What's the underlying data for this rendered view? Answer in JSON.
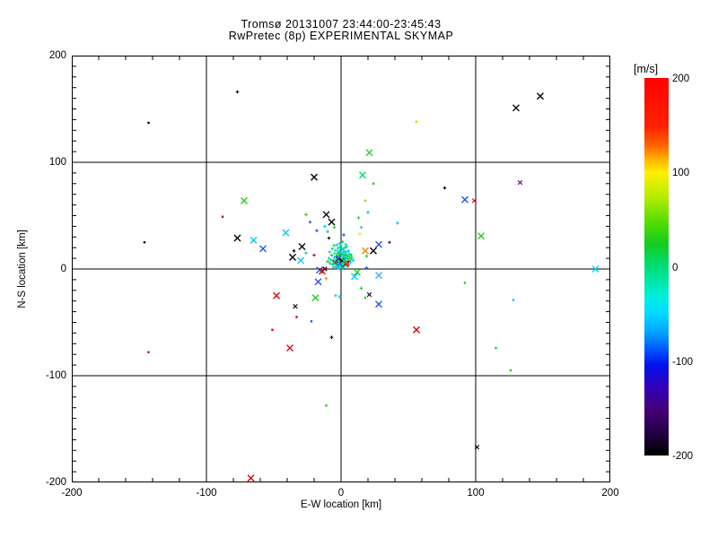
{
  "title": {
    "line1": "Tromsø 20131007 23:44:00-23:45:43",
    "line2": "RwPretec (8p) EXPERIMENTAL SKYMAP"
  },
  "plot": {
    "xlabel": "E-W location [km]",
    "ylabel": "N-S location [km]",
    "x_major_ticks": [
      -200,
      -100,
      0,
      100,
      200
    ],
    "x_tick_labels": [
      "-200",
      "-100",
      "0",
      "100",
      "200"
    ],
    "y_major_ticks": [
      200,
      100,
      0,
      -100,
      -200
    ],
    "y_tick_labels": [
      "200",
      "100",
      "0",
      "-100",
      "-200"
    ],
    "x_minor_step": 20,
    "y_minor_step": 10,
    "grid_values": [
      -100,
      0,
      100
    ]
  },
  "colorbar": {
    "label": "[m/s]",
    "tick_values": [
      200,
      100,
      0,
      -100,
      -200
    ],
    "tick_labels": [
      "200",
      "100",
      "0",
      "-100",
      "-200"
    ],
    "min": -200,
    "max": 200,
    "gradient_stops_top_to_bottom": [
      [
        "0%",
        "#ff0000"
      ],
      [
        "13%",
        "#ff2200"
      ],
      [
        "18%",
        "#ff6600"
      ],
      [
        "22%",
        "#ffbb00"
      ],
      [
        "25%",
        "#ffee00"
      ],
      [
        "31%",
        "#bbee00"
      ],
      [
        "38%",
        "#55dd00"
      ],
      [
        "44%",
        "#11cc22"
      ],
      [
        "50%",
        "#00dd77"
      ],
      [
        "54%",
        "#00e6aa"
      ],
      [
        "58%",
        "#00eedd"
      ],
      [
        "62%",
        "#00ddff"
      ],
      [
        "67%",
        "#00aaff"
      ],
      [
        "72%",
        "#0055ff"
      ],
      [
        "76%",
        "#0011ee"
      ],
      [
        "82%",
        "#3300bb"
      ],
      [
        "88%",
        "#440077"
      ],
      [
        "94%",
        "#220044"
      ],
      [
        "100%",
        "#000000"
      ]
    ]
  },
  "chart_data": {
    "type": "scatter",
    "title": "Tromsø 20131007 23:44:00-23:45:43",
    "subtitle": "RwPretec (8p) EXPERIMENTAL SKYMAP",
    "xlabel": "E-W location [km]",
    "ylabel": "N-S location [km]",
    "xlim": [
      -200,
      200
    ],
    "ylim": [
      -200,
      200
    ],
    "grid": true,
    "color_scale": {
      "label": "[m/s]",
      "min": -200,
      "max": 200
    },
    "marker_legend": {
      "X": "large cross",
      "x": "small cross",
      "+": "small plus",
      ".": "dot"
    },
    "points": [
      [
        -143,
        137,
        "#000000",
        "."
      ],
      [
        -77,
        166,
        "#000000",
        "+"
      ],
      [
        -146,
        25,
        "#000000",
        "."
      ],
      [
        -88,
        49,
        "#cc0000",
        "."
      ],
      [
        -72,
        64,
        "#22cc22",
        "X"
      ],
      [
        -20,
        86,
        "#000000",
        "X"
      ],
      [
        -77,
        29,
        "#000000",
        "X"
      ],
      [
        -65,
        27,
        "#00ccee",
        "X"
      ],
      [
        -58,
        19,
        "#2255ee",
        "X"
      ],
      [
        -41,
        34,
        "#00ccee",
        "X"
      ],
      [
        -11,
        51,
        "#000000",
        "X"
      ],
      [
        -7,
        44,
        "#000000",
        "X"
      ],
      [
        -23,
        44,
        "#2255ee",
        "+"
      ],
      [
        -26,
        51,
        "#22cc22",
        "+"
      ],
      [
        -18,
        36,
        "#2255ee",
        "+"
      ],
      [
        -35,
        17,
        "#000000",
        "+"
      ],
      [
        -36,
        11,
        "#000000",
        "X"
      ],
      [
        -30,
        8,
        "#00ccee",
        "X"
      ],
      [
        -29,
        21,
        "#000000",
        "X"
      ],
      [
        148,
        162,
        "#000000",
        "X"
      ],
      [
        130,
        151,
        "#000000",
        "X"
      ],
      [
        56,
        138,
        "#ddcc00",
        "."
      ],
      [
        21,
        109,
        "#33cc33",
        "X"
      ],
      [
        16,
        88,
        "#00dd66",
        "X"
      ],
      [
        24,
        80,
        "#22cc22",
        "."
      ],
      [
        77,
        76,
        "#000000",
        "+"
      ],
      [
        133,
        81,
        "#660077",
        "x"
      ],
      [
        92,
        65,
        "#2255ee",
        "X"
      ],
      [
        99,
        64,
        "#dd0000",
        "x"
      ],
      [
        18,
        64,
        "#99dd00",
        "."
      ],
      [
        20,
        53,
        "#00ccee",
        "+"
      ],
      [
        13,
        48,
        "#22cc22",
        "+"
      ],
      [
        42,
        43,
        "#00ccee",
        "+"
      ],
      [
        104,
        31,
        "#22cc22",
        "X"
      ],
      [
        14,
        33,
        "#ddee00",
        "+"
      ],
      [
        28,
        23,
        "#2255ee",
        "X"
      ],
      [
        36,
        25,
        "#550066",
        "+"
      ],
      [
        24,
        17,
        "#000000",
        "X"
      ],
      [
        18,
        17,
        "#ee8800",
        "X"
      ],
      [
        19,
        12,
        "#22cc22",
        "+"
      ],
      [
        189,
        0,
        "#00ddee",
        "X"
      ],
      [
        2,
        32,
        "#2255ee",
        "+"
      ],
      [
        -9,
        29,
        "#000000",
        "+"
      ],
      [
        0,
        25,
        "#2255ee",
        "+"
      ],
      [
        -12,
        40,
        "#00ccee",
        "+"
      ],
      [
        -5,
        39,
        "#22cc22",
        "+"
      ],
      [
        -10,
        35,
        "#00dd66",
        "+"
      ],
      [
        15,
        39,
        "#00ccee",
        "+"
      ],
      [
        -20,
        13,
        "#dd0000",
        "+"
      ],
      [
        -26,
        15,
        "#00ddaa",
        "+"
      ],
      [
        -9,
        6,
        "#dddd00",
        "+"
      ],
      [
        -12,
        0,
        "#000000",
        "x"
      ],
      [
        -16,
        -1,
        "#2255ee",
        "X"
      ],
      [
        19,
        1,
        "#2255ee",
        "+"
      ],
      [
        12,
        -3,
        "#22cc22",
        "X"
      ],
      [
        10,
        -7,
        "#00ccee",
        "X"
      ],
      [
        28,
        -6,
        "#44aaff",
        "X"
      ],
      [
        -4,
        -25,
        "#00ccee",
        "+"
      ],
      [
        -1,
        -26,
        "#00ccee",
        "+"
      ],
      [
        15,
        -18,
        "#22cc22",
        "+"
      ],
      [
        18,
        -27,
        "#22cc22",
        "+"
      ],
      [
        -143,
        -78,
        "#dd0000",
        "."
      ],
      [
        -48,
        -25,
        "#dd0000",
        "X"
      ],
      [
        -34,
        -35,
        "#000000",
        "x"
      ],
      [
        -19,
        -27,
        "#22cc22",
        "X"
      ],
      [
        -17,
        -12,
        "#2255ee",
        "X"
      ],
      [
        -14,
        -2,
        "#dd0000",
        "X"
      ],
      [
        -33,
        -45,
        "#dd0000",
        "."
      ],
      [
        -22,
        -49,
        "#2255ee",
        "."
      ],
      [
        -51,
        -57,
        "#dd0000",
        "."
      ],
      [
        -7,
        -64,
        "#000000",
        "+"
      ],
      [
        -38,
        -74,
        "#dd0000",
        "X"
      ],
      [
        -11,
        -128,
        "#22cc22",
        "."
      ],
      [
        -67,
        -196,
        "#dd0000",
        "X"
      ],
      [
        21,
        -24,
        "#000000",
        "x"
      ],
      [
        28,
        -33,
        "#2255ee",
        "X"
      ],
      [
        92,
        -13,
        "#22cc22",
        "."
      ],
      [
        56,
        -57,
        "#dd0000",
        "X"
      ],
      [
        128,
        -29,
        "#00ccee",
        "."
      ],
      [
        115,
        -74,
        "#22cc22",
        "."
      ],
      [
        126,
        -95,
        "#22cc22",
        "."
      ],
      [
        101,
        -167,
        "#000000",
        "x"
      ],
      [
        -11,
        -9,
        "#ee8800",
        "+"
      ],
      [
        -0.5,
        9.5,
        "#00dd99",
        "+"
      ],
      [
        1.2,
        11,
        "#00c8ee",
        "+"
      ],
      [
        -2,
        8,
        "#00e060",
        "+"
      ],
      [
        0.8,
        7,
        "#00dd99",
        "+"
      ],
      [
        -1.5,
        12,
        "#00c8ee",
        "+"
      ],
      [
        2.5,
        9,
        "#00dd99",
        "+"
      ],
      [
        -3,
        10.5,
        "#00e060",
        "+"
      ],
      [
        1.8,
        13.5,
        "#00dd99",
        "+"
      ],
      [
        -0.2,
        5.5,
        "#00c8ee",
        "+"
      ],
      [
        3.2,
        7.5,
        "#00e060",
        "+"
      ],
      [
        -4.2,
        6.5,
        "#00dd99",
        "+"
      ],
      [
        0.2,
        15,
        "#22cc22",
        "+"
      ],
      [
        -1,
        17,
        "#00dd99",
        "+"
      ],
      [
        2,
        16.5,
        "#00c8ee",
        "+"
      ],
      [
        -2.8,
        14,
        "#00dd99",
        "+"
      ],
      [
        4,
        12,
        "#00e060",
        "+"
      ],
      [
        -5,
        11,
        "#00c8ee",
        "+"
      ],
      [
        1,
        3.5,
        "#00dd99",
        "+"
      ],
      [
        -1.8,
        2.5,
        "#00e060",
        "+"
      ],
      [
        3,
        4,
        "#00c8ee",
        "+"
      ],
      [
        -3.5,
        4.5,
        "#00dd99",
        "+"
      ],
      [
        5,
        9.5,
        "#22cc22",
        "+"
      ],
      [
        -6,
        8,
        "#00e060",
        "+"
      ],
      [
        0.5,
        19,
        "#00c8ee",
        "+"
      ],
      [
        -2.2,
        19.5,
        "#00dd99",
        "+"
      ],
      [
        2.8,
        20,
        "#00e060",
        "+"
      ],
      [
        -4,
        17.5,
        "#00c8ee",
        "+"
      ],
      [
        6,
        14,
        "#00dd99",
        "+"
      ],
      [
        -7,
        13,
        "#22cc22",
        "+"
      ],
      [
        1.5,
        1,
        "#00e060",
        "+"
      ],
      [
        -0.8,
        0,
        "#00c8ee",
        "+"
      ],
      [
        4.5,
        2.5,
        "#00dd99",
        "+"
      ],
      [
        -5.5,
        1.5,
        "#00e060",
        "+"
      ],
      [
        7,
        6,
        "#00c8ee",
        "+"
      ],
      [
        -8,
        5,
        "#00dd99",
        "+"
      ],
      [
        0,
        22,
        "#00e060",
        "+"
      ],
      [
        -3,
        22.5,
        "#00c8ee",
        "+"
      ],
      [
        3.5,
        23,
        "#00dd99",
        "+"
      ],
      [
        -6.5,
        19,
        "#00e060",
        "+"
      ],
      [
        5.5,
        17,
        "#00c8ee",
        "+"
      ],
      [
        -9,
        10,
        "#00dd99",
        "+"
      ],
      [
        8,
        10.5,
        "#00e060",
        "+"
      ],
      [
        -0.4,
        12.5,
        "#000000",
        "+"
      ],
      [
        2.2,
        11.8,
        "#00dd99",
        "+"
      ],
      [
        -1.2,
        10.2,
        "#00c8ee",
        "+"
      ],
      [
        0.6,
        8.8,
        "#00e060",
        "+"
      ],
      [
        -2.5,
        7.2,
        "#00dd99",
        "+"
      ],
      [
        1.4,
        6.2,
        "#00c8ee",
        "+"
      ],
      [
        -3.8,
        8.8,
        "#00e060",
        "+"
      ],
      [
        2.6,
        5.2,
        "#00dd99",
        "+"
      ],
      [
        -1.6,
        4.2,
        "#00c8ee",
        "+"
      ],
      [
        0.9,
        14.2,
        "#00dd99",
        "+"
      ],
      [
        -2.1,
        15.8,
        "#00e060",
        "+"
      ],
      [
        1.7,
        18.2,
        "#00c8ee",
        "+"
      ],
      [
        -0.6,
        20.8,
        "#00dd99",
        "+"
      ],
      [
        -4.8,
        14.5,
        "#00e060",
        "+"
      ],
      [
        3.8,
        15.8,
        "#00c8ee",
        "+"
      ],
      [
        -6.2,
        4.2,
        "#00dd99",
        "+"
      ],
      [
        4.8,
        4.8,
        "#00e060",
        "+"
      ],
      [
        -7.5,
        8.5,
        "#00c8ee",
        "+"
      ],
      [
        6.5,
        8.2,
        "#00dd99",
        "+"
      ],
      [
        -0.1,
        2.2,
        "#00e060",
        "+"
      ],
      [
        2.1,
        2.8,
        "#00c8ee",
        "+"
      ],
      [
        -2.6,
        1.2,
        "#00dd99",
        "+"
      ],
      [
        -10,
        7,
        "#00e060",
        "+"
      ],
      [
        9,
        8,
        "#00c8ee",
        "+"
      ],
      [
        -0.9,
        24,
        "#00dd99",
        "+"
      ],
      [
        1.1,
        25.5,
        "#22cc22",
        "+"
      ],
      [
        -5.2,
        22,
        "#00e060",
        "+"
      ],
      [
        4.2,
        21,
        "#00dd99",
        "+"
      ],
      [
        -8.5,
        16,
        "#00c8ee",
        "+"
      ],
      [
        7.5,
        12.5,
        "#22cc22",
        "+"
      ],
      [
        0.3,
        10.8,
        "#c8e800",
        "+"
      ],
      [
        -1.4,
        13.8,
        "#22cc22",
        "+"
      ],
      [
        2.9,
        13.2,
        "#22cc22",
        "+"
      ],
      [
        -3.2,
        11.8,
        "#2255ee",
        "+"
      ],
      [
        1.9,
        9.2,
        "#2255ee",
        "+"
      ],
      [
        -2.9,
        5.8,
        "#22cc22",
        "+"
      ],
      [
        0.1,
        6.8,
        "#22cc22",
        "+"
      ],
      [
        3.4,
        10.2,
        "#00c8ee",
        "+"
      ],
      [
        3.6,
        5,
        "#dd0000",
        "X"
      ],
      [
        -1.3,
        5,
        "#2255ee",
        "X"
      ],
      [
        4.9,
        5.6,
        "#dd0000",
        "x"
      ],
      [
        -4.5,
        6.1,
        "#dd0000",
        "x"
      ],
      [
        1.1,
        14,
        "#00c8ee",
        "X"
      ],
      [
        -2,
        9.6,
        "#770088",
        "x"
      ],
      [
        0.5,
        8,
        "#000000",
        "x"
      ],
      [
        2.4,
        7.6,
        "#00e060",
        "X"
      ],
      [
        -3.4,
        3.4,
        "#00c8ee",
        "X"
      ],
      [
        5.8,
        11.5,
        "#00e060",
        "X"
      ]
    ]
  }
}
